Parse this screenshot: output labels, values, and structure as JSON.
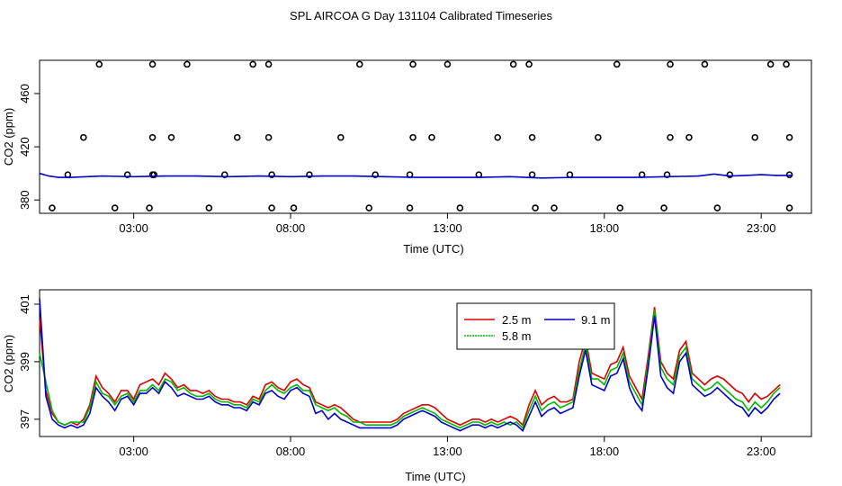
{
  "title": "SPL AIRCOA G  Day 131104  Calibrated Timeseries",
  "colors": {
    "red": "#dd0000",
    "green": "#00bb00",
    "blue": "#0000cc",
    "black": "#000000"
  },
  "chart_data": [
    {
      "type": "scatter",
      "xlabel": "Time (UTC)",
      "ylabel": "CO2 (ppm)",
      "xlim": [
        0,
        24.6
      ],
      "ylim": [
        370,
        485
      ],
      "xticks": [
        3,
        8,
        13,
        18,
        23
      ],
      "xtick_labels": [
        "03:00",
        "08:00",
        "13:00",
        "18:00",
        "23:00"
      ],
      "yticks": [
        380,
        420,
        460
      ],
      "ytick_labels": [
        "380",
        "420",
        "460"
      ],
      "scatter_points": [
        [
          1.9,
          482
        ],
        [
          3.6,
          482
        ],
        [
          4.7,
          482
        ],
        [
          6.8,
          482
        ],
        [
          7.3,
          482
        ],
        [
          10.2,
          482
        ],
        [
          11.9,
          482
        ],
        [
          13.0,
          482
        ],
        [
          15.1,
          482
        ],
        [
          15.6,
          482
        ],
        [
          18.4,
          482
        ],
        [
          20.1,
          482
        ],
        [
          21.2,
          482
        ],
        [
          23.3,
          482
        ],
        [
          23.8,
          482
        ],
        [
          1.4,
          427
        ],
        [
          3.6,
          427
        ],
        [
          4.2,
          427
        ],
        [
          6.3,
          427
        ],
        [
          7.3,
          427
        ],
        [
          9.6,
          427
        ],
        [
          11.9,
          427
        ],
        [
          12.5,
          427
        ],
        [
          14.6,
          427
        ],
        [
          15.7,
          427
        ],
        [
          17.8,
          427
        ],
        [
          20.1,
          427
        ],
        [
          20.7,
          427
        ],
        [
          22.8,
          427
        ],
        [
          23.9,
          427
        ],
        [
          0.9,
          399
        ],
        [
          2.8,
          399
        ],
        [
          3.6,
          399
        ],
        [
          3.65,
          399
        ],
        [
          5.9,
          399
        ],
        [
          7.4,
          399
        ],
        [
          8.6,
          399
        ],
        [
          10.7,
          399
        ],
        [
          11.8,
          399
        ],
        [
          14.0,
          399
        ],
        [
          15.7,
          399
        ],
        [
          16.9,
          399
        ],
        [
          19.2,
          399
        ],
        [
          20.0,
          399
        ],
        [
          22.0,
          399
        ],
        [
          23.9,
          399
        ],
        [
          0.4,
          374
        ],
        [
          2.4,
          374
        ],
        [
          3.5,
          374
        ],
        [
          5.4,
          374
        ],
        [
          7.4,
          374
        ],
        [
          8.1,
          374
        ],
        [
          10.5,
          374
        ],
        [
          11.8,
          374
        ],
        [
          13.4,
          374
        ],
        [
          15.8,
          374
        ],
        [
          16.4,
          374
        ],
        [
          18.5,
          374
        ],
        [
          19.9,
          374
        ],
        [
          21.6,
          374
        ],
        [
          23.9,
          374
        ]
      ],
      "line": {
        "name": "CO2",
        "x": [
          0,
          0.3,
          0.6,
          1,
          2,
          3,
          4,
          5,
          6,
          7,
          8,
          9,
          10,
          11,
          12,
          13,
          14,
          15,
          16,
          17,
          18,
          19,
          20,
          21,
          21.5,
          22,
          22.5,
          23,
          23.5,
          24
        ],
        "values": [
          400,
          398,
          397,
          397,
          398,
          397.5,
          398,
          398,
          397.5,
          398,
          397.5,
          398,
          398,
          397.5,
          397,
          397,
          397,
          397.5,
          396.5,
          397,
          397,
          397,
          397.5,
          398,
          399.5,
          398,
          398.5,
          399,
          398.5,
          398.5
        ]
      }
    },
    {
      "type": "line",
      "xlabel": "Time (UTC)",
      "ylabel": "CO2 (ppm)",
      "xlim": [
        0,
        24.6
      ],
      "ylim": [
        396.4,
        401.5
      ],
      "xticks": [
        3,
        8,
        13,
        18,
        23
      ],
      "xtick_labels": [
        "03:00",
        "08:00",
        "13:00",
        "18:00",
        "23:00"
      ],
      "yticks": [
        397,
        399,
        401
      ],
      "ytick_labels": [
        "397",
        "399",
        "401"
      ],
      "legend": {
        "position": "top-center",
        "entries": [
          "2.5 m",
          "5.8 m",
          "9.1 m"
        ]
      },
      "x": [
        0,
        0.2,
        0.4,
        0.6,
        0.8,
        1.0,
        1.2,
        1.4,
        1.6,
        1.8,
        2.0,
        2.2,
        2.4,
        2.6,
        2.8,
        3.0,
        3.2,
        3.4,
        3.6,
        3.8,
        4.0,
        4.2,
        4.4,
        4.6,
        4.8,
        5.0,
        5.2,
        5.4,
        5.6,
        5.8,
        6.0,
        6.2,
        6.4,
        6.6,
        6.8,
        7.0,
        7.2,
        7.4,
        7.6,
        7.8,
        8.0,
        8.2,
        8.4,
        8.6,
        8.8,
        9.0,
        9.2,
        9.4,
        9.6,
        9.8,
        10.0,
        10.2,
        10.4,
        10.6,
        10.8,
        11.0,
        11.2,
        11.4,
        11.6,
        11.8,
        12.0,
        12.2,
        12.4,
        12.6,
        12.8,
        13.0,
        13.2,
        13.4,
        13.6,
        13.8,
        14.0,
        14.2,
        14.4,
        14.6,
        14.8,
        15.0,
        15.2,
        15.4,
        15.6,
        15.8,
        16.0,
        16.2,
        16.4,
        16.6,
        16.8,
        17.0,
        17.2,
        17.4,
        17.6,
        17.8,
        18.0,
        18.2,
        18.4,
        18.6,
        18.8,
        19.0,
        19.2,
        19.4,
        19.6,
        19.8,
        20.0,
        20.2,
        20.4,
        20.6,
        20.8,
        21.0,
        21.2,
        21.4,
        21.6,
        21.8,
        22.0,
        22.2,
        22.4,
        22.6,
        22.8,
        23.0,
        23.2,
        23.4,
        23.6
      ],
      "series": [
        {
          "name": "2.5 m",
          "color": "#dd0000",
          "values": [
            400.5,
            398.0,
            397.2,
            396.9,
            396.8,
            396.9,
            396.8,
            397.0,
            397.5,
            398.5,
            398.1,
            397.9,
            397.6,
            398.0,
            398.0,
            397.7,
            398.2,
            398.3,
            398.4,
            398.2,
            398.6,
            398.4,
            398.1,
            398.2,
            398.0,
            398.0,
            397.9,
            398.0,
            397.8,
            397.7,
            397.7,
            397.6,
            397.6,
            397.5,
            397.8,
            397.7,
            398.2,
            398.3,
            398.1,
            398.0,
            398.3,
            398.4,
            398.2,
            398.1,
            397.6,
            397.5,
            397.4,
            397.5,
            397.4,
            397.2,
            397.0,
            396.9,
            396.9,
            396.9,
            396.9,
            396.9,
            396.9,
            397.0,
            397.2,
            397.3,
            397.4,
            397.5,
            397.5,
            397.4,
            397.2,
            397.0,
            396.9,
            396.8,
            396.9,
            397.0,
            397.0,
            396.9,
            397.0,
            396.9,
            397.0,
            397.1,
            397.0,
            396.8,
            397.5,
            398.0,
            397.5,
            397.7,
            397.8,
            397.6,
            397.6,
            397.7,
            399.0,
            399.8,
            398.6,
            398.5,
            398.4,
            398.9,
            399.0,
            399.5,
            398.5,
            398.1,
            397.7,
            399.2,
            400.9,
            399.0,
            398.6,
            398.4,
            399.4,
            399.7,
            398.6,
            398.4,
            398.2,
            398.4,
            398.5,
            398.4,
            398.2,
            398.0,
            397.9,
            397.6,
            397.9,
            397.7,
            397.8,
            398.0,
            398.2
          ]
        },
        {
          "name": "5.8 m",
          "color": "#00bb00",
          "values": [
            399.3,
            398.3,
            397.3,
            396.9,
            396.8,
            396.9,
            396.9,
            396.9,
            397.4,
            398.3,
            397.9,
            397.8,
            397.5,
            397.8,
            397.9,
            397.6,
            398.0,
            398.0,
            398.2,
            398.0,
            398.4,
            398.3,
            398.0,
            398.1,
            397.9,
            397.8,
            397.8,
            397.9,
            397.7,
            397.6,
            397.6,
            397.5,
            397.5,
            397.4,
            397.7,
            397.6,
            398.0,
            398.2,
            398.0,
            397.9,
            398.1,
            398.2,
            398.0,
            398.0,
            397.5,
            397.4,
            397.3,
            397.4,
            397.2,
            397.1,
            396.9,
            396.9,
            396.8,
            396.8,
            396.8,
            396.8,
            396.8,
            396.9,
            397.1,
            397.2,
            397.3,
            397.4,
            397.3,
            397.2,
            397.0,
            396.9,
            396.8,
            396.7,
            396.8,
            396.9,
            396.9,
            396.8,
            396.9,
            396.8,
            396.9,
            396.8,
            396.9,
            396.7,
            397.3,
            397.8,
            397.3,
            397.5,
            397.6,
            397.4,
            397.5,
            397.6,
            398.7,
            399.6,
            398.4,
            398.4,
            398.2,
            398.7,
            398.8,
            399.3,
            398.3,
            397.9,
            397.5,
            399.0,
            400.8,
            398.8,
            398.4,
            398.2,
            399.2,
            399.5,
            398.4,
            398.2,
            398.0,
            398.1,
            398.3,
            398.1,
            397.9,
            397.7,
            397.6,
            397.3,
            397.6,
            397.4,
            397.6,
            397.9,
            398.1
          ]
        },
        {
          "name": "9.1 m",
          "color": "#0000cc",
          "values": [
            401.2,
            397.8,
            397.0,
            396.8,
            396.7,
            396.8,
            396.7,
            396.8,
            397.2,
            398.1,
            397.8,
            397.6,
            397.3,
            397.7,
            397.8,
            397.5,
            397.9,
            397.9,
            398.1,
            397.9,
            398.3,
            398.1,
            397.8,
            397.9,
            397.8,
            397.7,
            397.7,
            397.8,
            397.6,
            397.5,
            397.5,
            397.4,
            397.4,
            397.3,
            397.6,
            397.5,
            397.9,
            398.0,
            397.8,
            397.7,
            398.0,
            398.1,
            397.9,
            397.8,
            397.2,
            397.3,
            397.0,
            397.2,
            397.0,
            396.9,
            396.8,
            396.7,
            396.7,
            396.7,
            396.7,
            396.7,
            396.7,
            396.8,
            397.0,
            397.1,
            397.2,
            397.3,
            397.2,
            397.1,
            396.9,
            396.8,
            396.7,
            396.6,
            396.7,
            396.8,
            396.8,
            396.7,
            396.8,
            396.7,
            396.8,
            396.9,
            396.8,
            396.6,
            397.1,
            397.6,
            397.1,
            397.3,
            397.4,
            397.2,
            397.3,
            397.4,
            398.5,
            399.4,
            398.2,
            398.1,
            398.0,
            398.5,
            398.6,
            399.1,
            398.1,
            397.6,
            397.3,
            398.8,
            400.6,
            398.5,
            398.1,
            397.9,
            399.0,
            399.3,
            398.2,
            398.0,
            397.8,
            397.9,
            398.1,
            397.9,
            397.7,
            397.5,
            397.4,
            397.1,
            397.4,
            397.2,
            397.4,
            397.7,
            397.9
          ]
        }
      ]
    }
  ]
}
